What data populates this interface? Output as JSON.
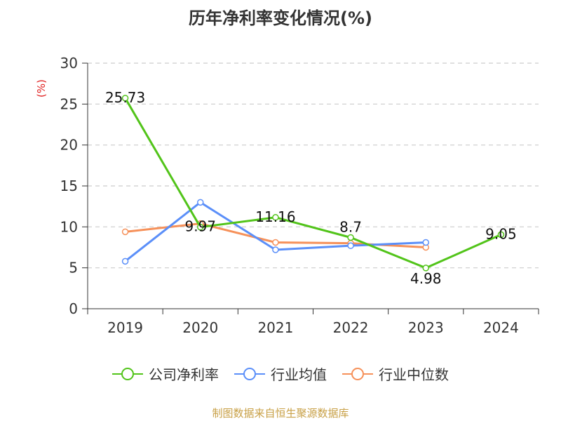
{
  "chart_data": {
    "type": "line",
    "title": "历年净利率变化情况(%)",
    "ylabel": "(%)",
    "xlabel": "",
    "categories": [
      "2019",
      "2020",
      "2021",
      "2022",
      "2023",
      "2024"
    ],
    "ylim": [
      0,
      30
    ],
    "yticks": [
      0,
      5,
      10,
      15,
      20,
      25,
      30
    ],
    "grid": "horizontal dashed",
    "legend_position": "bottom",
    "series": [
      {
        "name": "公司净利率",
        "color": "#52c41a",
        "values": [
          25.73,
          9.97,
          11.16,
          8.7,
          4.98,
          9.05
        ],
        "labels": [
          "25.73",
          "9.97",
          "11.16",
          "8.7",
          "4.98",
          "9.05"
        ]
      },
      {
        "name": "行业均值",
        "color": "#5b8ff9",
        "values": [
          5.8,
          13.0,
          7.2,
          7.7,
          8.1,
          null
        ]
      },
      {
        "name": "行业中位数",
        "color": "#f6915a",
        "values": [
          9.4,
          10.4,
          8.1,
          8.0,
          7.5,
          null
        ]
      }
    ]
  },
  "source": "制图数据来自恒生聚源数据库"
}
